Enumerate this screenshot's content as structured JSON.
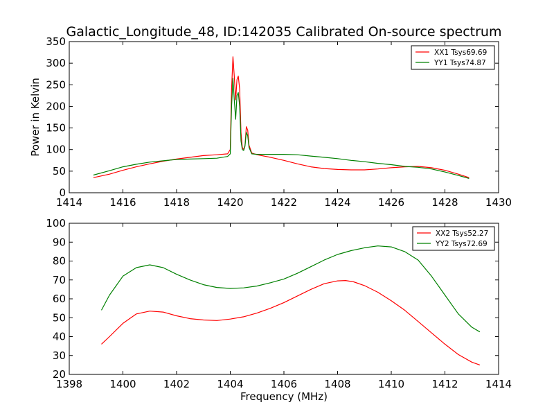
{
  "chart_data": [
    {
      "type": "line",
      "title": "Galactic_Longitude_48, ID:142035 Calibrated On-source spectrum",
      "xlabel": "",
      "ylabel": "Power in Kelvin",
      "xlim": [
        1414,
        1430
      ],
      "ylim": [
        0,
        350
      ],
      "xticks": [
        1414,
        1416,
        1418,
        1420,
        1422,
        1424,
        1426,
        1428,
        1430
      ],
      "yticks": [
        0,
        50,
        100,
        150,
        200,
        250,
        300,
        350
      ],
      "grid": false,
      "legend_position": "top-right",
      "series": [
        {
          "name": "XX1 Tsys69.69",
          "color": "#ff0000",
          "x": [
            1414.9,
            1415.5,
            1416,
            1416.5,
            1417,
            1417.5,
            1418,
            1418.5,
            1419,
            1419.5,
            1419.9,
            1420.0,
            1420.05,
            1420.1,
            1420.15,
            1420.2,
            1420.25,
            1420.3,
            1420.35,
            1420.4,
            1420.45,
            1420.5,
            1420.55,
            1420.6,
            1420.65,
            1420.7,
            1420.8,
            1421,
            1421.5,
            1422,
            1422.5,
            1423,
            1423.5,
            1424,
            1424.5,
            1425,
            1425.5,
            1426,
            1426.5,
            1427,
            1427.5,
            1428,
            1428.5,
            1428.9
          ],
          "y": [
            35,
            43,
            52,
            60,
            67,
            73,
            78,
            82,
            86,
            88,
            90,
            100,
            240,
            315,
            270,
            215,
            262,
            270,
            240,
            140,
            105,
            100,
            110,
            153,
            145,
            110,
            92,
            88,
            82,
            75,
            67,
            60,
            56,
            54,
            53,
            53,
            55,
            58,
            60,
            61,
            58,
            52,
            43,
            35
          ]
        },
        {
          "name": "YY1 Tsys74.87",
          "color": "#008000",
          "x": [
            1414.9,
            1415.5,
            1416,
            1416.5,
            1417,
            1417.5,
            1418,
            1418.5,
            1419,
            1419.5,
            1419.9,
            1420.0,
            1420.05,
            1420.1,
            1420.15,
            1420.2,
            1420.25,
            1420.3,
            1420.35,
            1420.4,
            1420.45,
            1420.5,
            1420.55,
            1420.6,
            1420.65,
            1420.7,
            1420.8,
            1421,
            1421.5,
            1422,
            1422.5,
            1423,
            1423.5,
            1424,
            1424.5,
            1425,
            1425.5,
            1426,
            1426.5,
            1427,
            1427.5,
            1428,
            1428.5,
            1428.9
          ],
          "y": [
            41,
            51,
            60,
            66,
            71,
            74,
            77,
            78,
            79,
            80,
            84,
            90,
            200,
            265,
            215,
            170,
            225,
            232,
            200,
            120,
            100,
            98,
            108,
            140,
            132,
            105,
            90,
            89,
            89,
            89,
            88,
            85,
            82,
            79,
            75,
            72,
            68,
            65,
            61,
            59,
            55,
            48,
            40,
            33
          ]
        }
      ]
    },
    {
      "type": "line",
      "title": "",
      "xlabel": "Frequency (MHz)",
      "ylabel": "",
      "xlim": [
        1398,
        1414
      ],
      "ylim": [
        20,
        100
      ],
      "xticks": [
        1398,
        1400,
        1402,
        1404,
        1406,
        1408,
        1410,
        1412,
        1414
      ],
      "yticks": [
        20,
        30,
        40,
        50,
        60,
        70,
        80,
        90,
        100
      ],
      "grid": false,
      "legend_position": "top-right",
      "series": [
        {
          "name": "XX2 Tsys52.27",
          "color": "#ff0000",
          "x": [
            1399.2,
            1399.5,
            1400,
            1400.5,
            1401,
            1401.5,
            1402,
            1402.5,
            1403,
            1403.5,
            1404,
            1404.5,
            1405,
            1405.5,
            1406,
            1406.5,
            1407,
            1407.5,
            1408,
            1408.3,
            1408.6,
            1409,
            1409.5,
            1410,
            1410.5,
            1411,
            1411.5,
            1412,
            1412.5,
            1413,
            1413.3
          ],
          "y": [
            36,
            40,
            47,
            52,
            53.5,
            53,
            51,
            49.5,
            48.8,
            48.5,
            49.3,
            50.5,
            52.5,
            55,
            58,
            61.5,
            65,
            68,
            69.5,
            69.7,
            69,
            67,
            63.5,
            59,
            54,
            48,
            42,
            36,
            30.5,
            26.5,
            25
          ]
        },
        {
          "name": "YY2 Tsys72.69",
          "color": "#008000",
          "x": [
            1399.2,
            1399.5,
            1400,
            1400.5,
            1401,
            1401.5,
            1402,
            1402.5,
            1403,
            1403.5,
            1404,
            1404.5,
            1405,
            1405.5,
            1406,
            1406.5,
            1407,
            1407.5,
            1408,
            1408.5,
            1409,
            1409.5,
            1410,
            1410.5,
            1411,
            1411.5,
            1412,
            1412.5,
            1413,
            1413.3
          ],
          "y": [
            54,
            62,
            72,
            76.5,
            78,
            76.5,
            73,
            70,
            67.5,
            66,
            65.5,
            65.8,
            66.8,
            68.5,
            70.5,
            73.5,
            77,
            80.5,
            83.5,
            85.5,
            87,
            88,
            87.5,
            85,
            80.5,
            72,
            62,
            52,
            45,
            42.5
          ]
        }
      ]
    }
  ]
}
